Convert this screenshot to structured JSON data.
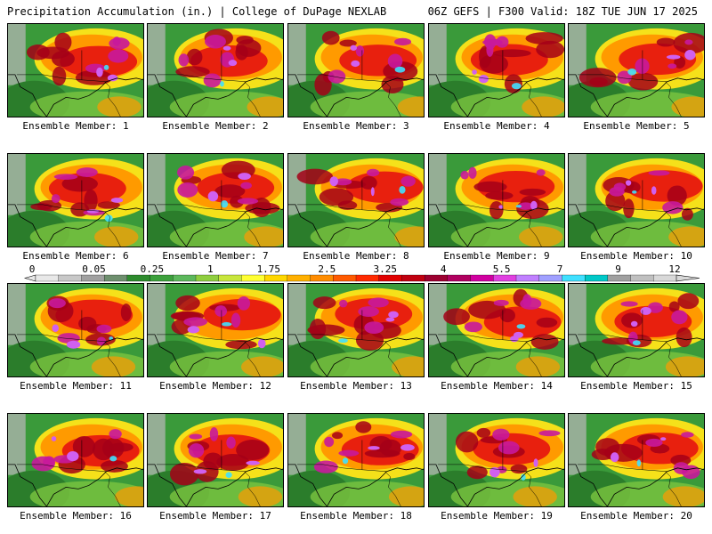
{
  "header": {
    "left": "Precipitation Accumulation (in.) | College of DuPage NEXLAB",
    "right": "06Z GEFS | F300 Valid: 18Z TUE JUN 17 2025"
  },
  "members": [
    "Ensemble Member: 1",
    "Ensemble Member: 2",
    "Ensemble Member: 3",
    "Ensemble Member: 4",
    "Ensemble Member: 5",
    "Ensemble Member: 6",
    "Ensemble Member: 7",
    "Ensemble Member: 8",
    "Ensemble Member: 9",
    "Ensemble Member: 10",
    "Ensemble Member: 11",
    "Ensemble Member: 12",
    "Ensemble Member: 13",
    "Ensemble Member: 14",
    "Ensemble Member: 15",
    "Ensemble Member: 16",
    "Ensemble Member: 17",
    "Ensemble Member: 18",
    "Ensemble Member: 19",
    "Ensemble Member: 20"
  ],
  "legend": {
    "labels": [
      "0",
      "0.05",
      "0.25",
      "1",
      "1.75",
      "2.5",
      "3.25",
      "4",
      "5.5",
      "7",
      "9",
      "12"
    ],
    "colors": [
      "#e8e8e8",
      "#c8c8c8",
      "#a0a0a0",
      "#6e8f6e",
      "#2e8b2e",
      "#3ca03c",
      "#5cb85c",
      "#8fce3f",
      "#c8e63c",
      "#ffff33",
      "#ffd700",
      "#ffb000",
      "#ff8c00",
      "#ff5a00",
      "#ff2a00",
      "#e00000",
      "#c00010",
      "#9c0030",
      "#b00060",
      "#d000a0",
      "#e040e0",
      "#c080ff",
      "#a0a0ff",
      "#40e0ff",
      "#00c8c8",
      "#a0a0a0",
      "#c0c0c0",
      "#d8d8d8"
    ]
  }
}
